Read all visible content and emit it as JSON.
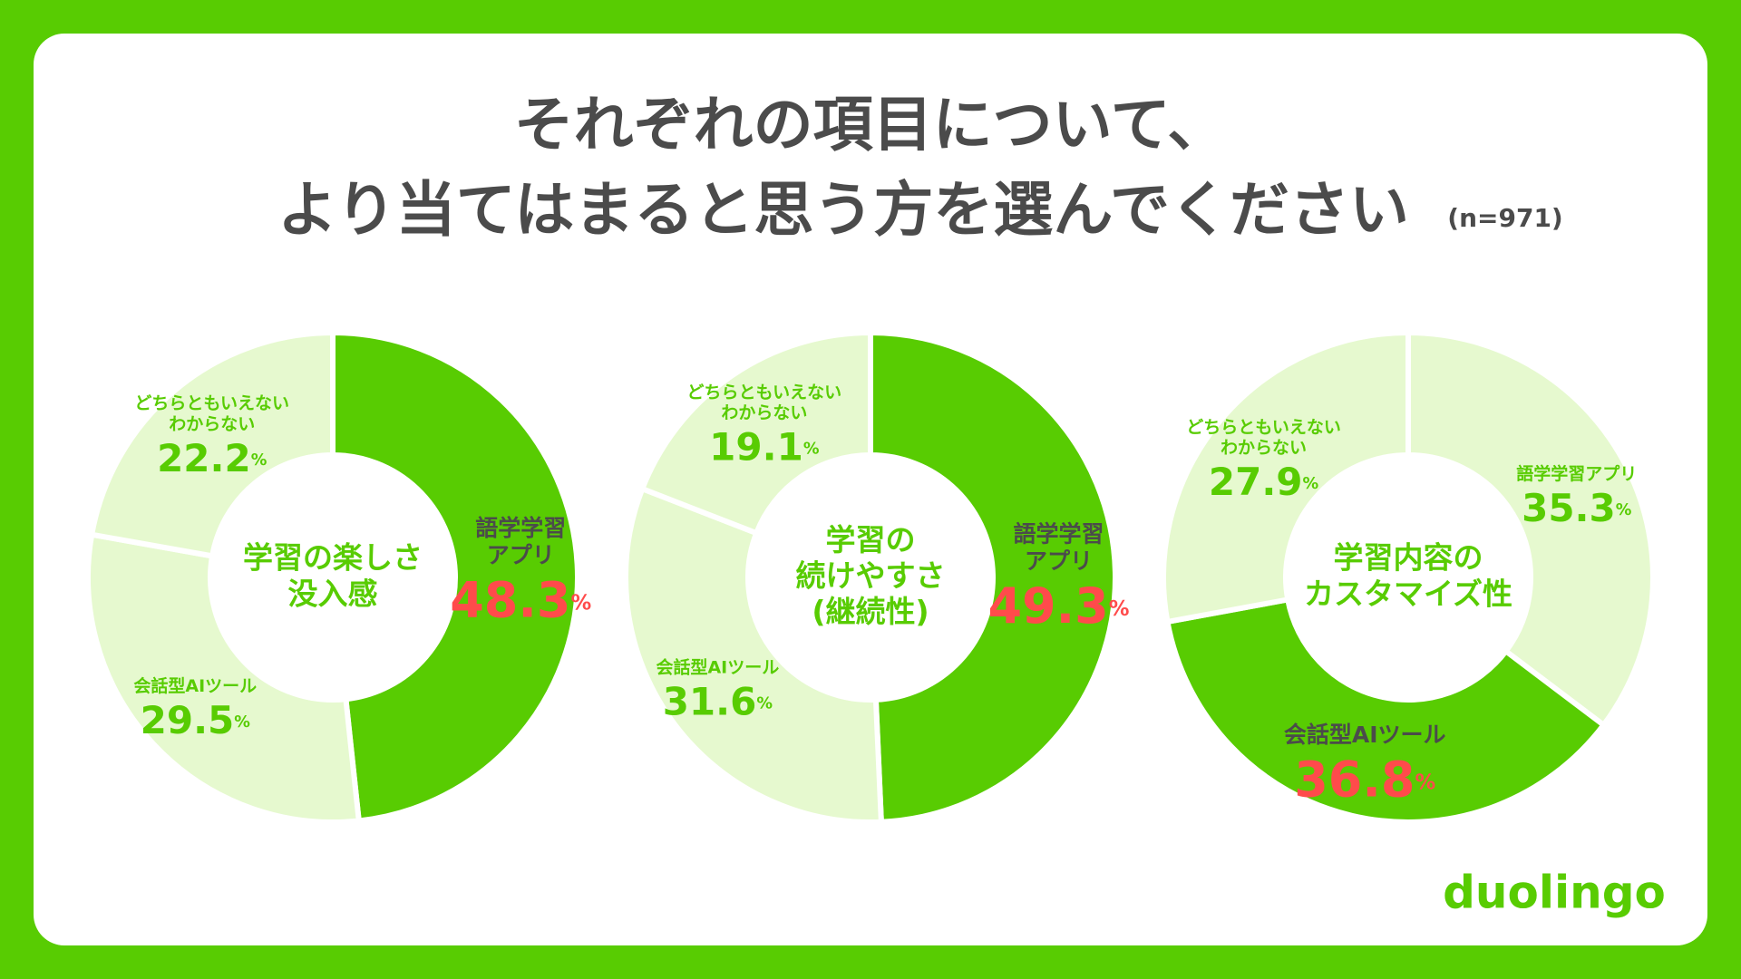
{
  "title": [
    "それぞれの項目について、",
    "より当てはまると思う方を選んでください"
  ],
  "sample": "(n=971)",
  "brand": "duolingo",
  "chart_data": [
    {
      "type": "pie",
      "title": [
        "学習の楽しさ",
        "没入感"
      ],
      "categories": [
        [
          "語学学習",
          "アプリ"
        ],
        [
          "会話型AIツール"
        ],
        [
          "どちらともいえない",
          "わからない"
        ]
      ],
      "values": [
        48.3,
        29.5,
        22.2
      ],
      "unit": "%",
      "colors": [
        "#58cc02",
        "#e6f9cf",
        "#e6f9cf"
      ],
      "highlight": 0
    },
    {
      "type": "pie",
      "title": [
        "学習の",
        "続けやすさ",
        "(継続性)"
      ],
      "categories": [
        [
          "語学学習",
          "アプリ"
        ],
        [
          "会話型AIツール"
        ],
        [
          "どちらともいえない",
          "わからない"
        ]
      ],
      "values": [
        49.3,
        31.6,
        19.1
      ],
      "unit": "%",
      "colors": [
        "#58cc02",
        "#e6f9cf",
        "#e6f9cf"
      ],
      "highlight": 0
    },
    {
      "type": "pie",
      "title": [
        "学習内容の",
        "カスタマイズ性"
      ],
      "categories": [
        [
          "語学学習アプリ"
        ],
        [
          "会話型AIツール"
        ],
        [
          "どちらともいえない",
          "わからない"
        ]
      ],
      "values": [
        35.3,
        36.8,
        27.9
      ],
      "unit": "%",
      "colors": [
        "#e6f9cf",
        "#58cc02",
        "#e6f9cf"
      ],
      "highlight": 1
    }
  ]
}
